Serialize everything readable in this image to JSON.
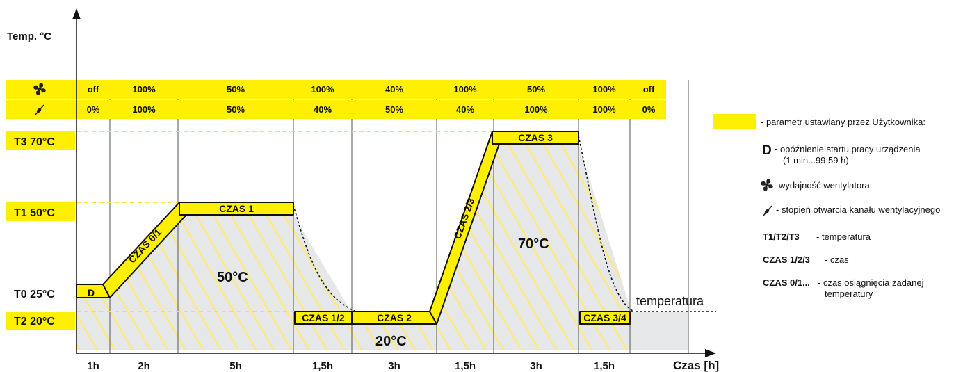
{
  "axes": {
    "y_title": "Temp. °C",
    "x_title": "Czas [h]"
  },
  "header_rows": {
    "fan_icon": "fan-icon",
    "damper_icon": "damper-icon",
    "fan_values": [
      "off",
      "100%",
      "50%",
      "100%",
      "40%",
      "100%",
      "50%",
      "100%",
      "off"
    ],
    "damper_values": [
      "0%",
      "100%",
      "50%",
      "40%",
      "50%",
      "40%",
      "100%",
      "100%",
      "0%"
    ]
  },
  "temperature_labels": {
    "t3": "T3 70°C",
    "t1": "T1 50°C",
    "t0": "T0 25°C",
    "t2": "T2 20°C"
  },
  "segments": {
    "d": "D",
    "czas01": "CZAS 0/1",
    "czas1": "CZAS 1",
    "czas12": "CZAS 1/2",
    "czas2": "CZAS 2",
    "czas23": "CZAS 2/3",
    "czas3": "CZAS 3",
    "czas34": "CZAS 3/4"
  },
  "region_temps": {
    "r50": "50°C",
    "r20": "20°C",
    "r70": "70°C"
  },
  "curve_label": "temperatura",
  "durations": [
    "1h",
    "2h",
    "5h",
    "1,5h",
    "3h",
    "1,5h",
    "3h",
    "1,5h"
  ],
  "legend": {
    "user_param": "- parametr ustawiany przez Użytkownika:",
    "d_symbol": "D",
    "d_line1": "- opóźnienie startu pracy urządzenia",
    "d_line2": "(1 min...99:59 h)",
    "fan_text": "- wydajność wentylatora",
    "damper_text": "- stopień otwarcia kanału wentylacyjnego",
    "t_key": "T1/T2/T3",
    "t_text": "- temperatura",
    "czas_key": "CZAS 1/2/3",
    "czas_text": "- czas",
    "czas0_key": "CZAS 0/1...",
    "czas0_line1": "- czas osiągnięcia zadanej",
    "czas0_line2": "temperatury"
  },
  "colors": {
    "yellow": "#ffef00",
    "gray_fill": "#e6e7e8",
    "stroke": "#1a1a1a"
  }
}
